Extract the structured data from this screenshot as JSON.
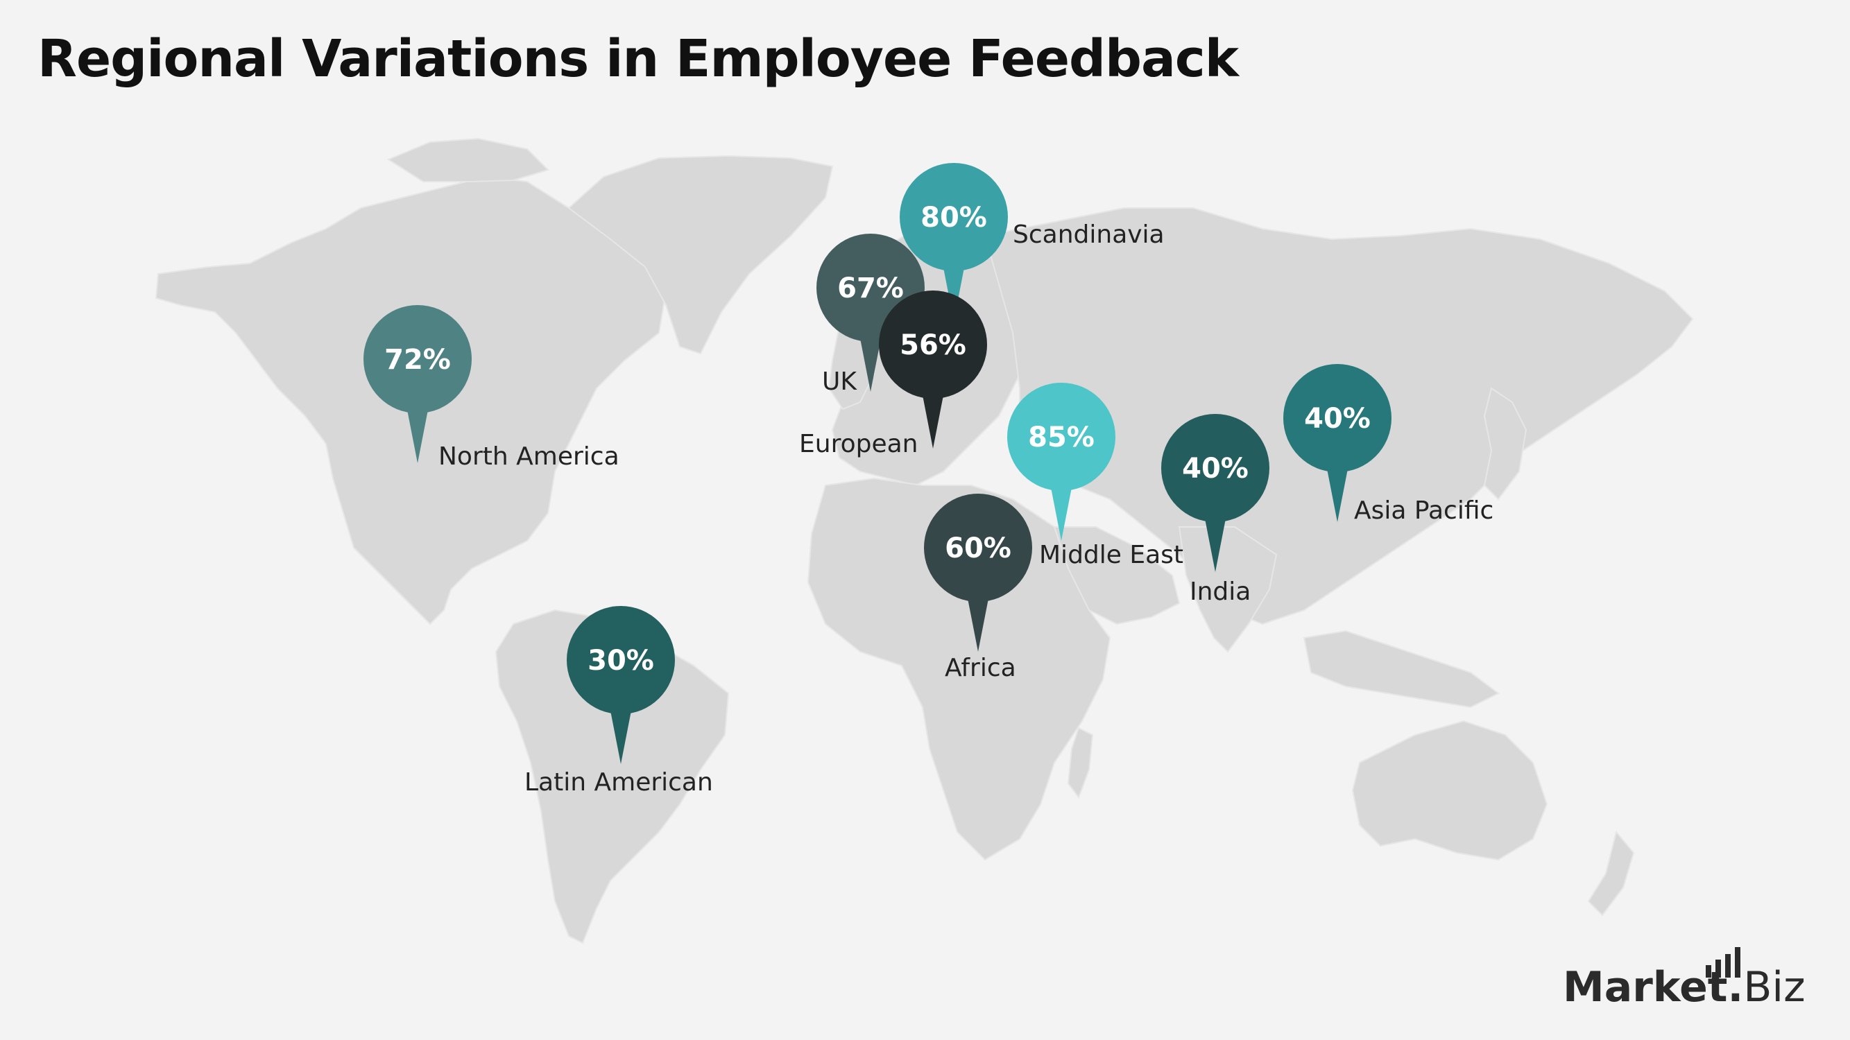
{
  "title": "Regional Variations in Employee Feedback",
  "colors": {
    "background": "#f3f3f3",
    "land": "#d8d8d8"
  },
  "chart_data": {
    "type": "map",
    "title": "Regional Variations in Employee Feedback",
    "unit": "%",
    "regions": [
      {
        "name": "North America",
        "value_label": "72%",
        "value": 72,
        "color": "#4f8282"
      },
      {
        "name": "Latin American",
        "value_label": "30%",
        "value": 30,
        "color": "#236060"
      },
      {
        "name": "UK",
        "value_label": "67%",
        "value": 67,
        "color": "#445e60"
      },
      {
        "name": "Scandinavia",
        "value_label": "80%",
        "value": 80,
        "color": "#3aa2a6"
      },
      {
        "name": "European",
        "value_label": "56%",
        "value": 56,
        "color": "#232b2d"
      },
      {
        "name": "Middle East",
        "value_label": "85%",
        "value": 85,
        "color": "#4ec5c8"
      },
      {
        "name": "Africa",
        "value_label": "60%",
        "value": 60,
        "color": "#364749"
      },
      {
        "name": "India",
        "value_label": "40%",
        "value": 40,
        "color": "#245d5e"
      },
      {
        "name": "Asia Pacific",
        "value_label": "40%",
        "value": 40,
        "color": "#27787a"
      }
    ]
  },
  "logo": {
    "brand": "Market",
    "dot": ".",
    "suffix": "Biz"
  }
}
